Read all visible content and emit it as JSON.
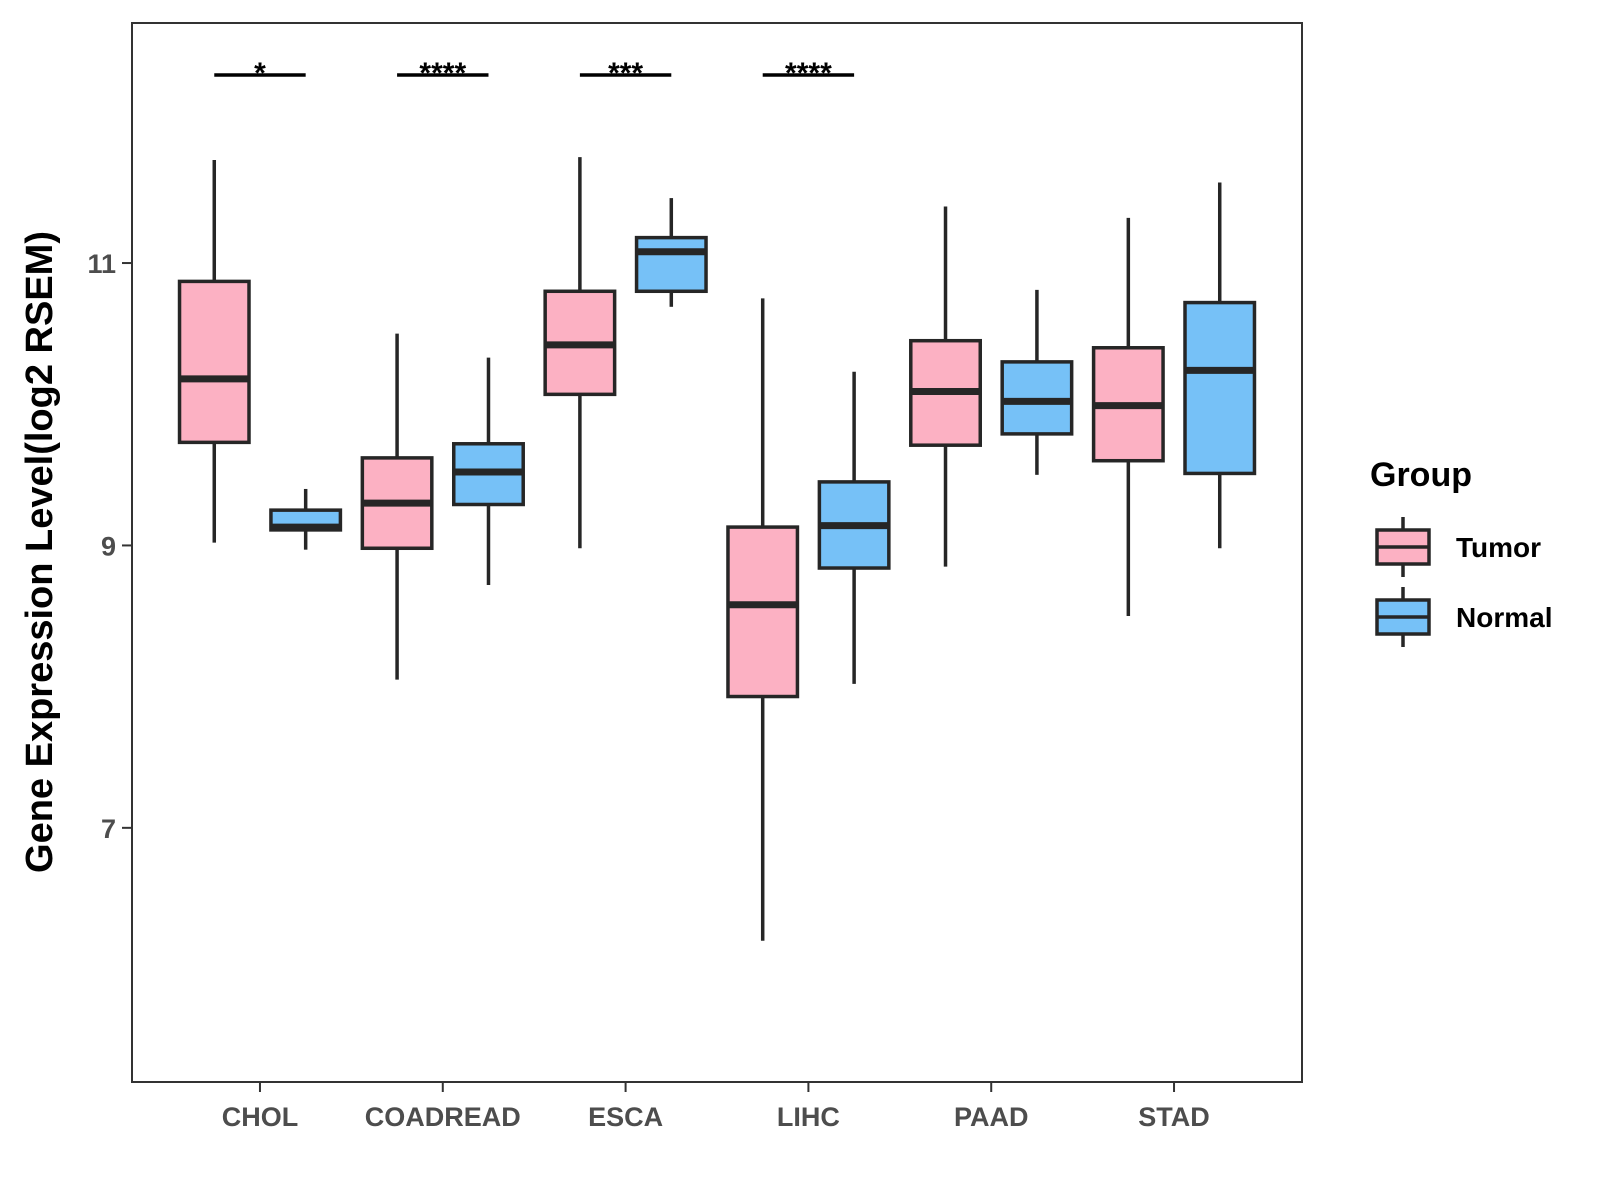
{
  "chart_data": {
    "type": "boxplot",
    "ylabel": "Gene Expression Level(log2 RSEM)",
    "xlabel": "",
    "ylim": [
      5.2,
      12.7
    ],
    "yticks": [
      7,
      9,
      11
    ],
    "categories": [
      "CHOL",
      "COADREAD",
      "ESCA",
      "LIHC",
      "PAAD",
      "STAD"
    ],
    "legend": {
      "title": "Group",
      "position": "right",
      "entries": [
        {
          "name": "Tumor",
          "color": "#fcb1c3"
        },
        {
          "name": "Normal",
          "color": "#76c1f7"
        }
      ]
    },
    "series": [
      {
        "name": "Tumor",
        "color": "#fcb1c3",
        "boxes": [
          {
            "category": "CHOL",
            "whisker_low": 9.02,
            "q1": 9.73,
            "median": 10.18,
            "q3": 10.87,
            "whisker_high": 11.73
          },
          {
            "category": "COADREAD",
            "whisker_low": 8.05,
            "q1": 8.98,
            "median": 9.3,
            "q3": 9.62,
            "whisker_high": 10.5
          },
          {
            "category": "ESCA",
            "whisker_low": 8.98,
            "q1": 10.07,
            "median": 10.42,
            "q3": 10.8,
            "whisker_high": 11.75
          },
          {
            "category": "LIHC",
            "whisker_low": 6.2,
            "q1": 7.93,
            "median": 8.58,
            "q3": 9.13,
            "whisker_high": 10.75
          },
          {
            "category": "PAAD",
            "whisker_low": 8.85,
            "q1": 9.71,
            "median": 10.09,
            "q3": 10.45,
            "whisker_high": 11.4
          },
          {
            "category": "STAD",
            "whisker_low": 8.5,
            "q1": 9.6,
            "median": 9.99,
            "q3": 10.4,
            "whisker_high": 11.32
          }
        ]
      },
      {
        "name": "Normal",
        "color": "#76c1f7",
        "boxes": [
          {
            "category": "CHOL",
            "whisker_low": 8.97,
            "q1": 9.11,
            "median": 9.13,
            "q3": 9.25,
            "whisker_high": 9.4
          },
          {
            "category": "COADREAD",
            "whisker_low": 8.72,
            "q1": 9.29,
            "median": 9.52,
            "q3": 9.72,
            "whisker_high": 10.33
          },
          {
            "category": "ESCA",
            "whisker_low": 10.69,
            "q1": 10.8,
            "median": 11.08,
            "q3": 11.18,
            "whisker_high": 11.46
          },
          {
            "category": "LIHC",
            "whisker_low": 8.02,
            "q1": 8.84,
            "median": 9.14,
            "q3": 9.45,
            "whisker_high": 10.23
          },
          {
            "category": "PAAD",
            "whisker_low": 9.5,
            "q1": 9.79,
            "median": 10.02,
            "q3": 10.3,
            "whisker_high": 10.81
          },
          {
            "category": "STAD",
            "whisker_low": 8.98,
            "q1": 9.51,
            "median": 10.24,
            "q3": 10.72,
            "whisker_high": 11.57
          }
        ]
      }
    ],
    "annotations": [
      {
        "category": "CHOL",
        "label": "*"
      },
      {
        "category": "COADREAD",
        "label": "****"
      },
      {
        "category": "ESCA",
        "label": "***"
      },
      {
        "category": "LIHC",
        "label": "****"
      }
    ]
  }
}
